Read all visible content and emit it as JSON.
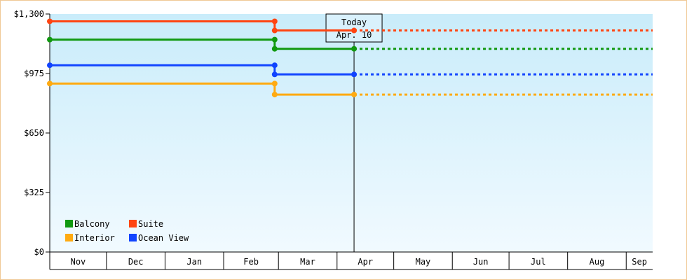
{
  "chart_data": {
    "type": "line",
    "title": "",
    "xlabel": "",
    "ylabel": "",
    "ylim": [
      0,
      1300
    ],
    "y_ticks": [
      0,
      325,
      650,
      975,
      1300
    ],
    "y_tick_labels": [
      "$0",
      "$325",
      "$650",
      "$975",
      "$1,300"
    ],
    "x_range": [
      "2023-11-01",
      "2024-09-15"
    ],
    "months": [
      {
        "label": "Nov",
        "start": "2023-11-01",
        "end": "2023-12-01"
      },
      {
        "label": "Dec",
        "start": "2023-12-01",
        "end": "2024-01-01"
      },
      {
        "label": "Jan",
        "start": "2024-01-01",
        "end": "2024-02-01"
      },
      {
        "label": "Feb",
        "start": "2024-02-01",
        "end": "2024-03-01"
      },
      {
        "label": "Mar",
        "start": "2024-03-01",
        "end": "2024-04-01"
      },
      {
        "label": "Apr",
        "start": "2024-04-01",
        "end": "2024-05-01"
      },
      {
        "label": "May",
        "start": "2024-05-01",
        "end": "2024-06-01"
      },
      {
        "label": "Jun",
        "start": "2024-06-01",
        "end": "2024-07-01"
      },
      {
        "label": "Jul",
        "start": "2024-07-01",
        "end": "2024-08-01"
      },
      {
        "label": "Aug",
        "start": "2024-08-01",
        "end": "2024-09-01"
      },
      {
        "label": "Sep",
        "start": "2024-09-01",
        "end": "2024-09-15"
      }
    ],
    "today": {
      "title": "Today",
      "label": "Apr. 10",
      "date": "2024-04-10"
    },
    "series": [
      {
        "name": "Suite",
        "color": "#ff4411",
        "points": [
          [
            "2023-11-01",
            1260
          ],
          [
            "2024-02-28",
            1260
          ],
          [
            "2024-02-28",
            1210
          ],
          [
            "2024-04-10",
            1210
          ]
        ],
        "projection": [
          [
            "2024-04-10",
            1210
          ],
          [
            "2024-09-15",
            1210
          ]
        ]
      },
      {
        "name": "Balcony",
        "color": "#119911",
        "points": [
          [
            "2023-11-01",
            1160
          ],
          [
            "2024-02-28",
            1160
          ],
          [
            "2024-02-28",
            1110
          ],
          [
            "2024-04-10",
            1110
          ]
        ],
        "projection": [
          [
            "2024-04-10",
            1110
          ],
          [
            "2024-09-15",
            1110
          ]
        ]
      },
      {
        "name": "Ocean View",
        "color": "#1144ff",
        "points": [
          [
            "2023-11-01",
            1020
          ],
          [
            "2024-02-28",
            1020
          ],
          [
            "2024-02-28",
            970
          ],
          [
            "2024-04-10",
            970
          ]
        ],
        "projection": [
          [
            "2024-04-10",
            970
          ],
          [
            "2024-09-15",
            970
          ]
        ]
      },
      {
        "name": "Interior",
        "color": "#ffaa11",
        "points": [
          [
            "2023-11-01",
            920
          ],
          [
            "2024-02-28",
            920
          ],
          [
            "2024-02-28",
            860
          ],
          [
            "2024-04-10",
            860
          ]
        ],
        "projection": [
          [
            "2024-04-10",
            860
          ],
          [
            "2024-09-15",
            860
          ]
        ]
      }
    ],
    "legend": {
      "placement": "bottom-left",
      "order": [
        "Balcony",
        "Suite",
        "Interior",
        "Ocean View"
      ]
    },
    "colors": {
      "plot_top": "#c9ecfa",
      "plot_bottom": "#f1faff",
      "border": "#f0c896"
    }
  }
}
